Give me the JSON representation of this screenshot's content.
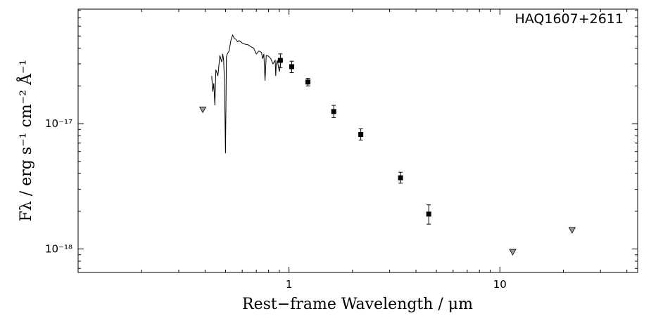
{
  "chart_data": {
    "type": "scatter",
    "title": "",
    "object_name": "HAQ1607+2611",
    "xlabel": "Rest−frame Wavelength / μm",
    "ylabel": "Fλ / erg s⁻¹ cm⁻² Å⁻¹",
    "xscale": "log",
    "yscale": "log",
    "xlim": [
      0.1,
      45
    ],
    "ylim": [
      6.5e-19,
      8.2e-17
    ],
    "xticks": [
      {
        "value": 1,
        "label": "1"
      },
      {
        "value": 10,
        "label": "10"
      }
    ],
    "yticks": [
      {
        "value": 1e-17,
        "label": "10⁻¹⁷"
      },
      {
        "value": 1e-18,
        "label": "10⁻¹⁸"
      }
    ],
    "grid": false,
    "series": [
      {
        "kind": "points",
        "x": [
          0.91,
          1.03,
          1.23,
          1.63,
          2.19,
          3.38,
          4.6
        ],
        "y": [
          3.2e-17,
          2.85e-17,
          2.15e-17,
          1.25e-17,
          8.2e-18,
          3.7e-18,
          1.9e-18
        ],
        "yerr_low": [
          2.8e-17,
          2.55e-17,
          2e-17,
          1.12e-17,
          7.4e-18,
          3.35e-18,
          1.58e-18
        ],
        "yerr_high": [
          3.6e-17,
          3.15e-17,
          2.3e-17,
          1.4e-17,
          9.1e-18,
          4.1e-18,
          2.25e-18
        ]
      },
      {
        "kind": "upper_limits",
        "x": [
          0.39,
          11.5,
          22.0
        ],
        "y": [
          1.3e-17,
          9.5e-19,
          1.42e-18
        ]
      },
      {
        "kind": "spectrum",
        "x": [
          0.43,
          0.435,
          0.44,
          0.445,
          0.45,
          0.46,
          0.47,
          0.48,
          0.485,
          0.49,
          0.495,
          0.5,
          0.505,
          0.51,
          0.52,
          0.53,
          0.54,
          0.55,
          0.56,
          0.57,
          0.58,
          0.6,
          0.62,
          0.64,
          0.66,
          0.68,
          0.7,
          0.72,
          0.74,
          0.75,
          0.76,
          0.77,
          0.78,
          0.8,
          0.82,
          0.84,
          0.86,
          0.865,
          0.87,
          0.88,
          0.9,
          0.92
        ],
        "y": [
          2.4e-17,
          1.8e-17,
          2.1e-17,
          1.4e-17,
          2.7e-17,
          2.4e-17,
          3.5e-17,
          3.1e-17,
          3.6e-17,
          3.2e-17,
          2e-17,
          5.8e-18,
          3.4e-17,
          3.6e-17,
          3.8e-17,
          4.6e-17,
          5.1e-17,
          4.8e-17,
          4.7e-17,
          4.5e-17,
          4.6e-17,
          4.4e-17,
          4.3e-17,
          4.25e-17,
          4.1e-17,
          4e-17,
          3.6e-17,
          3.8e-17,
          3.7e-17,
          3.3e-17,
          3.6e-17,
          2.2e-17,
          3.5e-17,
          3.45e-17,
          3.3e-17,
          3e-17,
          3.2e-17,
          2.4e-17,
          3e-17,
          3.2e-17,
          2.6e-17,
          3.3e-17
        ]
      }
    ]
  }
}
